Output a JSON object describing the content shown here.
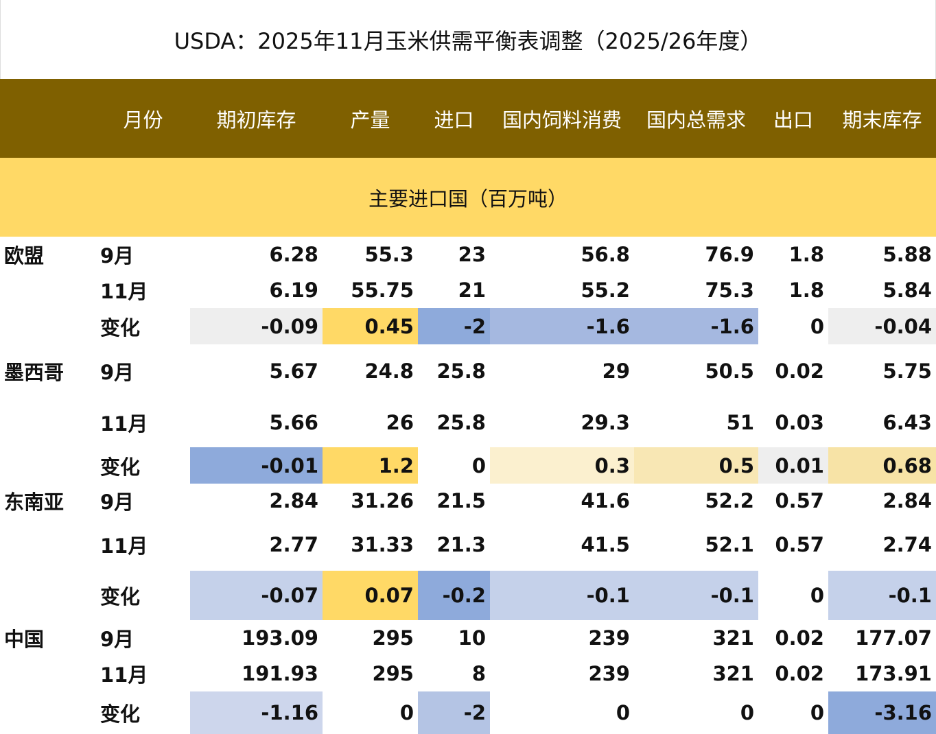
{
  "title": "USDA：2025年11月玉米供需平衡表调整（2025/26年度）",
  "headers": [
    "",
    "月份",
    "期初库存",
    "产量",
    "进口",
    "国内饲料消费",
    "国内总需求",
    "出口",
    "期末库存"
  ],
  "section_title": "主要进口国（百万吨）",
  "regions": [
    {
      "name": "欧盟",
      "rows": [
        {
          "month": "9月",
          "values": [
            "6.28",
            "55.3",
            "23",
            "56.8",
            "76.9",
            "1.8",
            "5.88"
          ]
        },
        {
          "month": "11月",
          "values": [
            "6.19",
            "55.75",
            "21",
            "55.2",
            "75.3",
            "1.8",
            "5.84"
          ]
        },
        {
          "month": "变化",
          "values": [
            "-0.09",
            "0.45",
            "-2",
            "-1.6",
            "-1.6",
            "0",
            "-0.04"
          ],
          "colors": [
            "#eeeeee",
            "#ffd966",
            "#8eaadb",
            "#a5b8e0",
            "#a5b8e0",
            "",
            "#eeeeee"
          ]
        }
      ]
    },
    {
      "name": "墨西哥",
      "rows": [
        {
          "month": "9月",
          "values": [
            "5.67",
            "24.8",
            "25.8",
            "29",
            "50.5",
            "0.02",
            "5.75"
          ]
        },
        {
          "month": "11月",
          "values": [
            "5.66",
            "26",
            "25.8",
            "29.3",
            "51",
            "0.03",
            "6.43"
          ]
        },
        {
          "month": "变化",
          "values": [
            "-0.01",
            "1.2",
            "0",
            "0.3",
            "0.5",
            "0.01",
            "0.68"
          ],
          "colors": [
            "#8eaadb",
            "#ffd966",
            "",
            "#fbf0cf",
            "#f8e7b4",
            "#eeeeee",
            "#f7e3a6"
          ]
        }
      ]
    },
    {
      "name": "东南亚",
      "rows": [
        {
          "month": "9月",
          "values": [
            "2.84",
            "31.26",
            "21.5",
            "41.6",
            "52.2",
            "0.57",
            "2.84"
          ]
        },
        {
          "month": "11月",
          "values": [
            "2.77",
            "31.33",
            "21.3",
            "41.5",
            "52.1",
            "0.57",
            "2.74"
          ]
        },
        {
          "month": "变化",
          "values": [
            "-0.07",
            "0.07",
            "-0.2",
            "-0.1",
            "-0.1",
            "0",
            "-0.1"
          ],
          "colors": [
            "#c5d1ea",
            "#ffd966",
            "#8eaadb",
            "#c5d1ea",
            "#c5d1ea",
            "",
            "#c5d1ea"
          ]
        }
      ]
    },
    {
      "name": "中国",
      "rows": [
        {
          "month": "9月",
          "values": [
            "193.09",
            "295",
            "10",
            "239",
            "321",
            "0.02",
            "177.07"
          ]
        },
        {
          "month": "11月",
          "values": [
            "191.93",
            "295",
            "8",
            "239",
            "321",
            "0.02",
            "173.91"
          ]
        },
        {
          "month": "变化",
          "values": [
            "-1.16",
            "0",
            "-2",
            "0",
            "0",
            "0",
            "-3.16"
          ],
          "colors": [
            "#cdd6ec",
            "",
            "#b4c4e4",
            "",
            "",
            "",
            "#8eaadb"
          ]
        }
      ]
    }
  ]
}
